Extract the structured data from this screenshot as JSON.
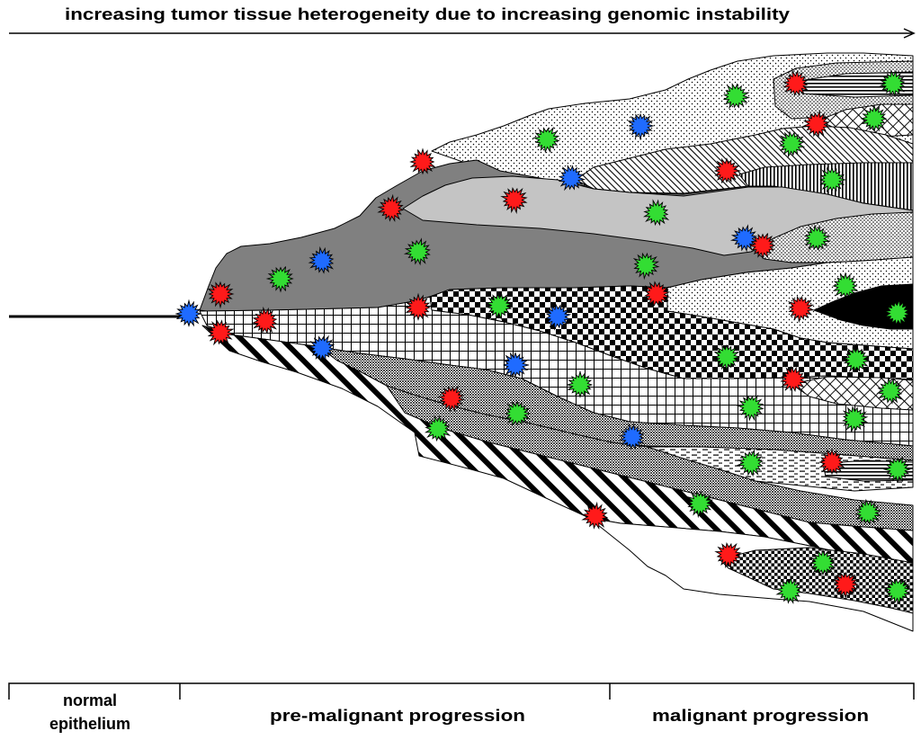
{
  "title": "increasing tumor tissue heterogeneity due to increasing genomic instability",
  "stages": {
    "normal_line1": "normal",
    "normal_line2": "epithelium",
    "premalignant": "pre-malignant progression",
    "malignant": "malignant progression"
  },
  "colors": {
    "mutation_red": "#ff1a1a",
    "mutation_green": "#33dd33",
    "mutation_blue": "#1f6bff",
    "dark_gray": "#808080",
    "light_gray": "#c4c4c4"
  }
}
